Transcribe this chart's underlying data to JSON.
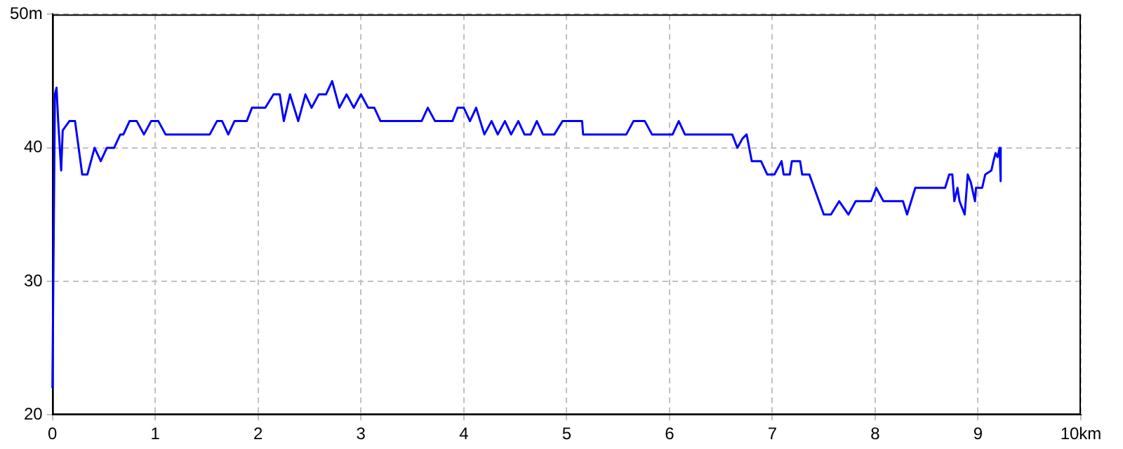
{
  "chart_data": {
    "type": "line",
    "x": [
      0,
      0.024,
      0.04,
      0.056,
      0.085,
      0.1,
      0.165,
      0.22,
      0.29,
      0.34,
      0.41,
      0.47,
      0.53,
      0.6,
      0.66,
      0.69,
      0.75,
      0.82,
      0.89,
      0.96,
      1.03,
      1.1,
      1.53,
      1.6,
      1.65,
      1.71,
      1.77,
      1.89,
      1.94,
      2.07,
      2.15,
      2.21,
      2.25,
      2.31,
      2.39,
      2.46,
      2.52,
      2.59,
      2.66,
      2.72,
      2.79,
      2.86,
      2.93,
      3.0,
      3.07,
      3.13,
      3.19,
      3.59,
      3.65,
      3.72,
      3.89,
      3.94,
      4.0,
      4.06,
      4.12,
      4.2,
      4.27,
      4.33,
      4.4,
      4.46,
      4.53,
      4.59,
      4.65,
      4.71,
      4.77,
      4.88,
      4.96,
      5.15,
      5.16,
      5.58,
      5.65,
      5.76,
      5.83,
      6.03,
      6.09,
      6.15,
      6.61,
      6.66,
      6.71,
      6.75,
      6.8,
      6.89,
      6.95,
      7.02,
      7.09,
      7.11,
      7.17,
      7.19,
      7.27,
      7.29,
      7.36,
      7.5,
      7.57,
      7.65,
      7.74,
      7.81,
      7.96,
      8.01,
      8.08,
      8.27,
      8.31,
      8.35,
      8.39,
      8.68,
      8.72,
      8.75,
      8.77,
      8.8,
      8.82,
      8.87,
      8.9,
      8.93,
      8.97,
      8.98,
      9.04,
      9.07,
      9.13,
      9.15,
      9.17,
      9.19,
      9.21,
      9.22
    ],
    "series": [
      {
        "color": "#0000ff",
        "values": [
          22,
          44,
          44.5,
          42,
          38.3,
          41.3,
          42,
          42,
          38,
          38,
          40,
          39,
          40,
          40,
          41,
          41,
          42,
          42,
          41,
          42,
          42,
          41,
          41,
          42,
          42,
          41,
          42,
          42,
          43,
          43,
          44,
          44,
          42,
          44,
          42,
          44,
          43,
          44,
          44,
          45,
          43,
          44,
          43,
          44,
          43,
          43,
          42,
          42,
          43,
          42,
          42,
          43,
          43,
          42,
          43,
          41,
          42,
          41,
          42,
          41,
          42,
          41,
          41,
          42,
          41,
          41,
          42,
          42,
          41,
          41,
          42,
          42,
          41,
          41,
          42,
          41,
          41,
          40,
          40.7,
          41,
          39,
          39,
          38,
          38,
          39,
          38,
          38,
          39,
          39,
          38,
          38,
          35,
          35,
          36,
          35,
          36,
          36,
          37,
          36,
          36,
          35,
          36,
          37,
          37,
          38,
          38,
          36,
          37,
          36,
          35,
          38,
          37.4,
          36,
          37,
          37,
          38,
          38.3,
          39,
          39.6,
          39.3,
          40,
          37.5
        ]
      }
    ],
    "xlim": [
      0,
      10
    ],
    "ylim": [
      20,
      50
    ],
    "xticks": [
      0,
      1,
      2,
      3,
      4,
      5,
      6,
      7,
      8,
      9,
      {
        "value": 10,
        "label": "10km"
      }
    ],
    "yticks": [
      20,
      30,
      40,
      {
        "value": 50,
        "label": "50m"
      }
    ],
    "grid": true,
    "line_style": "solid",
    "marker": "none",
    "legend": false
  }
}
